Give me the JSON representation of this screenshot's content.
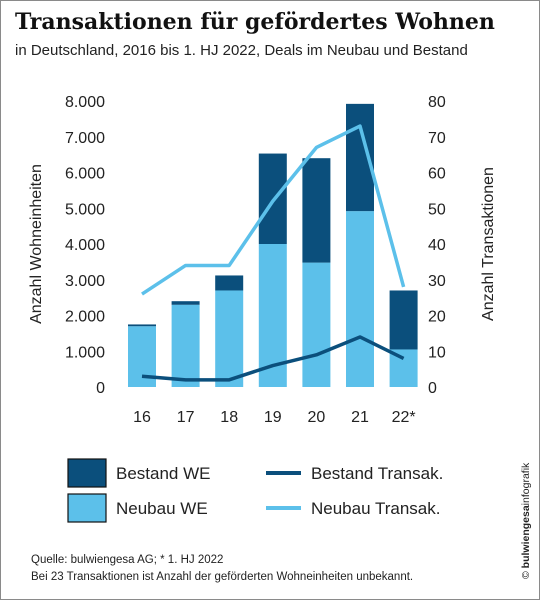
{
  "title": "Transaktionen für gefördertes Wohnen",
  "subtitle": "in Deutschland, 2016 bis 1. HJ 2022, Deals im Neubau und Bestand",
  "source": "Quelle: bulwiengesa AG; * 1. HJ 2022",
  "note": "Bei 23 Transaktionen ist Anzahl der geförderten Wohneinheiten unbekannt.",
  "brand": {
    "copyright": "©",
    "name": "bulwiengesa",
    "suffix": "infografik"
  },
  "colors": {
    "bestand": "#0b4f7c",
    "neubau": "#5cc0ea"
  },
  "chart_data": {
    "type": "bar",
    "categories": [
      "16",
      "17",
      "18",
      "19",
      "20",
      "21",
      "22*"
    ],
    "series": [
      {
        "name": "Neubau WE",
        "kind": "stacked-bar",
        "axis": "left",
        "values": [
          1700,
          2300,
          2700,
          4000,
          3480,
          4920,
          1050
        ]
      },
      {
        "name": "Bestand WE",
        "kind": "stacked-bar",
        "axis": "left",
        "values": [
          50,
          100,
          420,
          2530,
          2920,
          3000,
          1650
        ]
      },
      {
        "name": "Bestand Transak.",
        "kind": "line",
        "axis": "right",
        "values": [
          3,
          2,
          2,
          6,
          9,
          14,
          8
        ]
      },
      {
        "name": "Neubau Transak.",
        "kind": "line",
        "axis": "right",
        "values": [
          26,
          34,
          34,
          52,
          67,
          73,
          28
        ]
      }
    ],
    "ylabel": "Anzahl Wohneinheiten",
    "y2label": "Anzahl Transaktionen",
    "ylim": [
      0,
      8000
    ],
    "y2lim": [
      0,
      80
    ],
    "yticks": [
      "0",
      "1.000",
      "2.000",
      "3.000",
      "4.000",
      "5.000",
      "6.000",
      "7.000",
      "8.000"
    ],
    "y2ticks": [
      "0",
      "10",
      "20",
      "30",
      "40",
      "50",
      "60",
      "70",
      "80"
    ],
    "grid": false,
    "legend": [
      {
        "label": "Bestand WE",
        "swatch": "box",
        "color": "#0b4f7c"
      },
      {
        "label": "Neubau WE",
        "swatch": "box",
        "color": "#5cc0ea"
      },
      {
        "label": "Bestand Transak.",
        "swatch": "line",
        "color": "#0b4f7c"
      },
      {
        "label": "Neubau Transak.",
        "swatch": "line",
        "color": "#5cc0ea"
      }
    ],
    "legend_position": "bottom"
  }
}
